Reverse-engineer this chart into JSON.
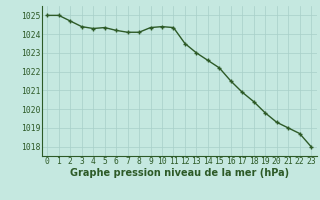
{
  "x": [
    0,
    1,
    2,
    3,
    4,
    5,
    6,
    7,
    8,
    9,
    10,
    11,
    12,
    13,
    14,
    15,
    16,
    17,
    18,
    19,
    20,
    21,
    22,
    23
  ],
  "y": [
    1025.0,
    1025.0,
    1024.7,
    1024.4,
    1024.3,
    1024.35,
    1024.2,
    1024.1,
    1024.1,
    1024.35,
    1024.4,
    1024.35,
    1023.5,
    1023.0,
    1022.6,
    1022.2,
    1021.5,
    1020.9,
    1020.4,
    1019.8,
    1019.3,
    1019.0,
    1018.7,
    1018.0
  ],
  "line_color": "#2d5a27",
  "marker": "+",
  "marker_color": "#2d5a27",
  "bg_color": "#c5e8e0",
  "grid_color": "#a8cfc8",
  "title": "Graphe pression niveau de la mer (hPa)",
  "ylim": [
    1017.5,
    1025.5
  ],
  "xlim": [
    -0.5,
    23.5
  ],
  "yticks": [
    1018,
    1019,
    1020,
    1021,
    1022,
    1023,
    1024,
    1025
  ],
  "xticks": [
    0,
    1,
    2,
    3,
    4,
    5,
    6,
    7,
    8,
    9,
    10,
    11,
    12,
    13,
    14,
    15,
    16,
    17,
    18,
    19,
    20,
    21,
    22,
    23
  ],
  "tick_color": "#2d5a27",
  "title_color": "#2d5a27",
  "tick_fontsize": 5.8,
  "title_fontsize": 7.0,
  "line_width": 1.0,
  "marker_size": 3.5
}
